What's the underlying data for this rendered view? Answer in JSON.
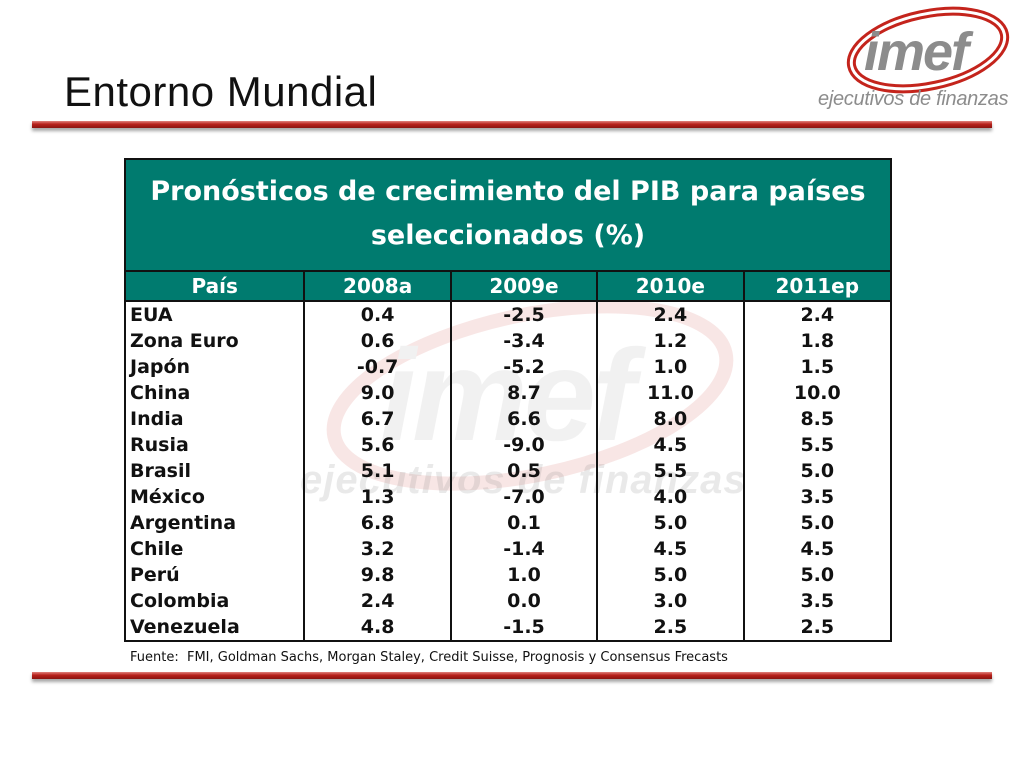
{
  "slide": {
    "title": "Entorno Mundial",
    "source": "Fuente:  FMI, Goldman Sachs, Morgan Staley, Credit Suisse, Prognosis y Consensus Frecasts"
  },
  "logo": {
    "wordmark": "imef",
    "tagline": "ejecutivos de finanzas",
    "colors": {
      "ring": "#c4241c",
      "text": "#8c8c8c"
    }
  },
  "table": {
    "title": "Pronósticos de crecimiento del PIB para países seleccionados (%)",
    "headers": [
      "País",
      "2008a",
      "2009e",
      "2010e",
      "2011ep"
    ],
    "rows": [
      [
        "EUA",
        "0.4",
        "-2.5",
        "2.4",
        "2.4"
      ],
      [
        "Zona Euro",
        "0.6",
        "-3.4",
        "1.2",
        "1.8"
      ],
      [
        "Japón",
        "-0.7",
        "-5.2",
        "1.0",
        "1.5"
      ],
      [
        "China",
        "9.0",
        "8.7",
        "11.0",
        "10.0"
      ],
      [
        "India",
        "6.7",
        "6.6",
        "8.0",
        "8.5"
      ],
      [
        "Rusia",
        "5.6",
        "-9.0",
        "4.5",
        "5.5"
      ],
      [
        "Brasil",
        "5.1",
        "0.5",
        "5.5",
        "5.0"
      ],
      [
        "México",
        "1.3",
        "-7.0",
        "4.0",
        "3.5"
      ],
      [
        "Argentina",
        "6.8",
        "0.1",
        "5.0",
        "5.0"
      ],
      [
        "Chile",
        "3.2",
        "-1.4",
        "4.5",
        "4.5"
      ],
      [
        "Perú",
        "9.8",
        "1.0",
        "5.0",
        "5.0"
      ],
      [
        "Colombia",
        "2.4",
        "0.0",
        "3.0",
        "3.5"
      ],
      [
        "Venezuela",
        "4.8",
        "-1.5",
        "2.5",
        "2.5"
      ]
    ]
  },
  "colors": {
    "header_bg": "#007b6f",
    "rule": "#b8211b"
  }
}
